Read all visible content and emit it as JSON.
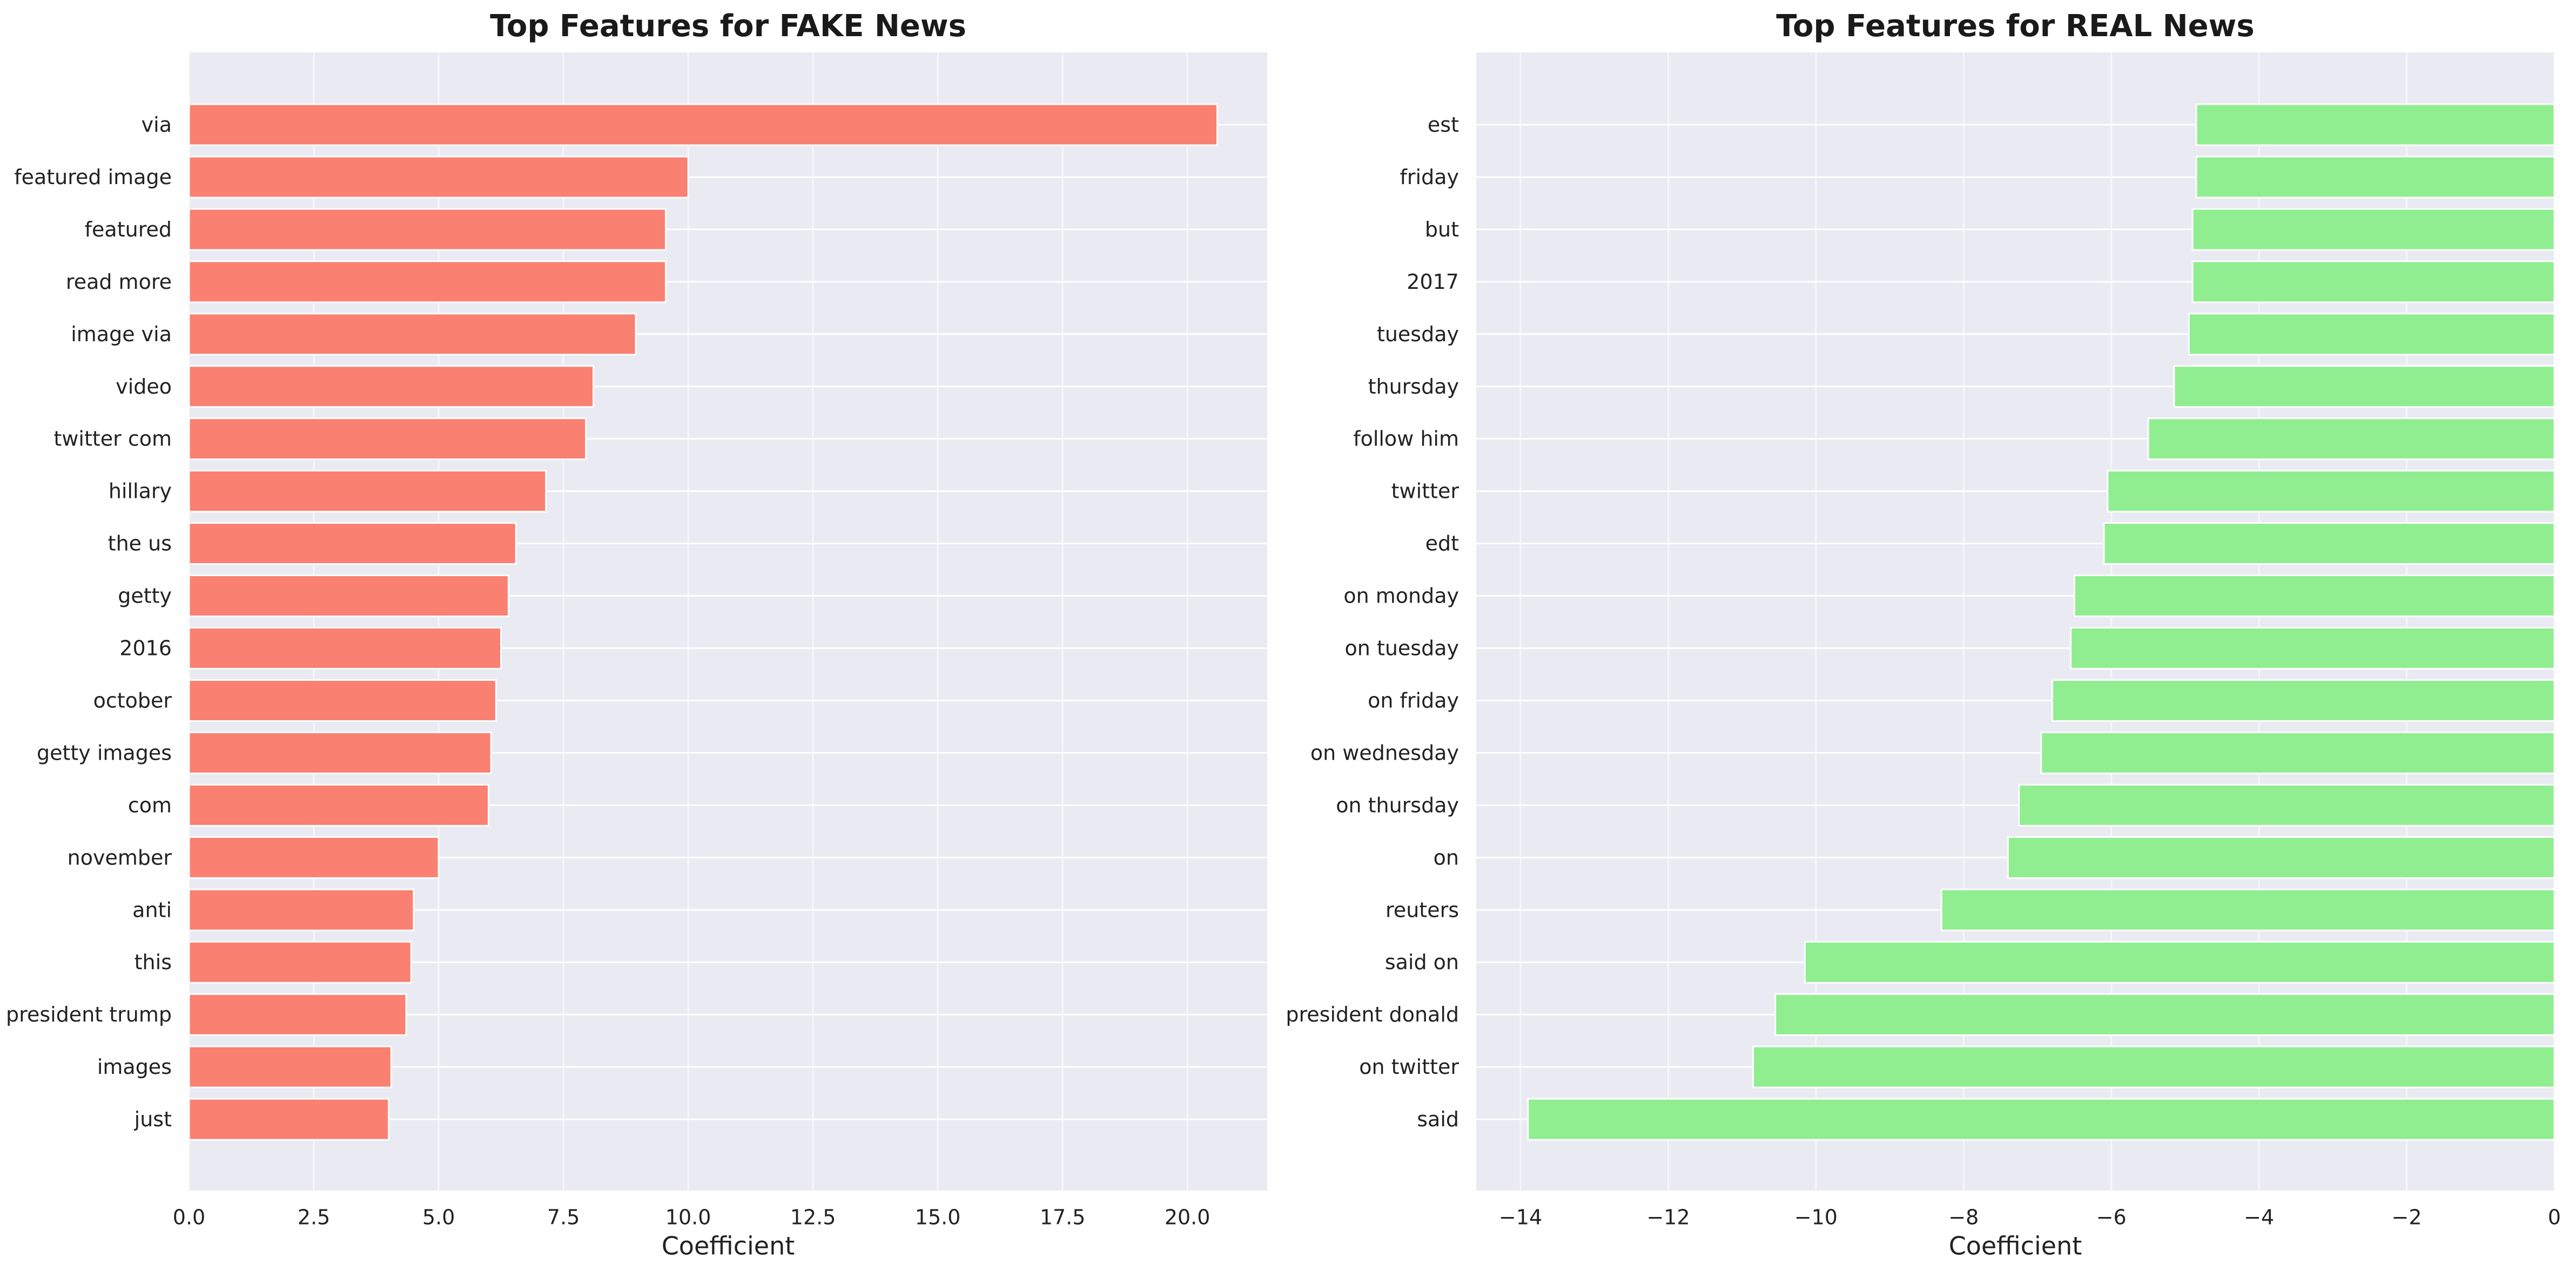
{
  "chart_data": [
    {
      "type": "bar",
      "orientation": "horizontal",
      "title": "Top Features for FAKE News",
      "xlabel": "Coefficient",
      "ylabel": "",
      "xlim": [
        0,
        21.6
      ],
      "xticks": [
        0,
        2.5,
        5,
        7.5,
        10,
        12.5,
        15,
        17.5,
        20
      ],
      "xtick_labels": [
        "0.0",
        "2.5",
        "5.0",
        "7.5",
        "10.0",
        "12.5",
        "15.0",
        "17.5",
        "20.0"
      ],
      "grid": true,
      "bar_color": "#FA8072",
      "categories": [
        "via",
        "featured image",
        "featured",
        "read more",
        "image via",
        "video",
        "twitter com",
        "hillary",
        "the us",
        "getty",
        "2016",
        "october",
        "getty images",
        "com",
        "november",
        "anti",
        "this",
        "president trump",
        "images",
        "just"
      ],
      "values": [
        20.6,
        10.0,
        9.55,
        9.55,
        8.95,
        8.1,
        7.95,
        7.15,
        6.55,
        6.4,
        6.25,
        6.15,
        6.05,
        6.0,
        5.0,
        4.5,
        4.45,
        4.35,
        4.05,
        4.0
      ]
    },
    {
      "type": "bar",
      "orientation": "horizontal",
      "title": "Top Features for REAL News",
      "xlabel": "Coefficient",
      "ylabel": "",
      "xlim": [
        -14.6,
        0
      ],
      "xticks": [
        -14,
        -12,
        -10,
        -8,
        -6,
        -4,
        -2,
        0
      ],
      "xtick_labels": [
        "−14",
        "−12",
        "−10",
        "−8",
        "−6",
        "−4",
        "−2",
        "0"
      ],
      "grid": true,
      "bar_color": "#90EE90",
      "categories": [
        "est",
        "friday",
        "but",
        "2017",
        "tuesday",
        "thursday",
        "follow him",
        "twitter",
        "edt",
        "on monday",
        "on tuesday",
        "on friday",
        "on wednesday",
        "on thursday",
        "on",
        "reuters",
        "said on",
        "president donald",
        "on twitter",
        "said"
      ],
      "values": [
        -4.85,
        -4.85,
        -4.9,
        -4.9,
        -4.95,
        -5.15,
        -5.5,
        -6.05,
        -6.1,
        -6.5,
        -6.55,
        -6.8,
        -6.95,
        -7.25,
        -7.4,
        -8.3,
        -10.15,
        -10.55,
        -10.85,
        -13.9
      ]
    }
  ]
}
